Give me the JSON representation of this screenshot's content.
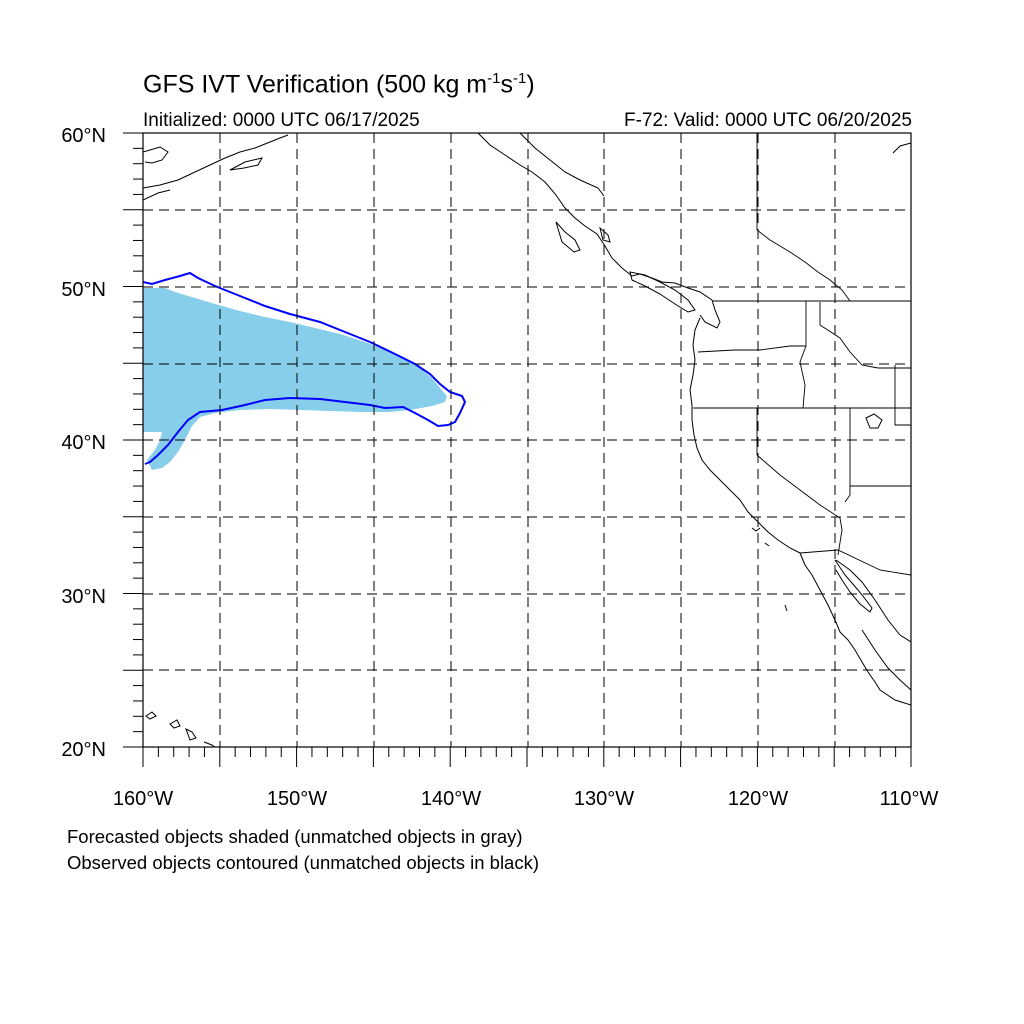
{
  "title": {
    "main": "GFS IVT Verification (500 kg m",
    "exp1": "-1",
    "mid": "s",
    "exp2": "-1",
    "end": ")"
  },
  "subtitle_left": "Initialized: 0000 UTC 06/17/2025",
  "subtitle_right": "F-72: Valid: 0000 UTC 06/20/2025",
  "map": {
    "lon_range": [
      -160,
      -110
    ],
    "lat_range": [
      20,
      60
    ],
    "lat_labels": [
      "20°N",
      "30°N",
      "40°N",
      "50°N",
      "60°N"
    ],
    "lon_labels": [
      "160°W",
      "150°W",
      "140°W",
      "130°W",
      "120°W",
      "110°W"
    ],
    "grid": "dashed every 5°",
    "forecast_object_color": "#87CEEB",
    "observed_object_color": "#0000FF"
  },
  "footnote_1": "Forecasted objects shaded (unmatched objects in gray)",
  "footnote_2": "Observed objects contoured (unmatched objects in black)"
}
